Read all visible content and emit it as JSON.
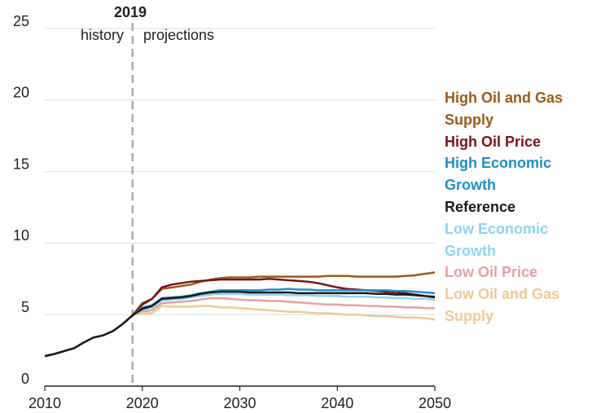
{
  "chart_data": {
    "type": "line",
    "annotations": {
      "year": "2019",
      "left": "history",
      "right": "projections"
    },
    "divider_x": 2019,
    "x": [
      2010,
      2011,
      2012,
      2013,
      2014,
      2015,
      2016,
      2017,
      2018,
      2019,
      2020,
      2021,
      2022,
      2023,
      2024,
      2025,
      2026,
      2027,
      2028,
      2029,
      2030,
      2031,
      2032,
      2033,
      2034,
      2035,
      2036,
      2037,
      2038,
      2039,
      2040,
      2041,
      2042,
      2043,
      2044,
      2045,
      2046,
      2047,
      2048,
      2049,
      2050
    ],
    "xlim": [
      2010,
      2050
    ],
    "xticks": [
      2010,
      2020,
      2030,
      2040,
      2050
    ],
    "ylim": [
      0,
      25
    ],
    "yticks": [
      0,
      5,
      10,
      15,
      20,
      25
    ],
    "grid": true,
    "legend": "right",
    "series": [
      {
        "name": "High Oil and Gas Supply",
        "color": "#9b5a1a",
        "values": [
          2.1,
          2.25,
          2.45,
          2.65,
          3.05,
          3.4,
          3.55,
          3.85,
          4.35,
          4.95,
          5.8,
          6.1,
          6.8,
          6.9,
          7.0,
          7.1,
          7.3,
          7.45,
          7.55,
          7.6,
          7.6,
          7.6,
          7.65,
          7.65,
          7.65,
          7.65,
          7.65,
          7.65,
          7.65,
          7.7,
          7.7,
          7.7,
          7.65,
          7.65,
          7.65,
          7.65,
          7.65,
          7.7,
          7.75,
          7.85,
          7.95
        ]
      },
      {
        "name": "High Oil Price",
        "color": "#7b1020",
        "values": [
          2.1,
          2.25,
          2.45,
          2.65,
          3.05,
          3.4,
          3.55,
          3.85,
          4.35,
          4.95,
          5.7,
          6.1,
          6.9,
          7.1,
          7.2,
          7.3,
          7.35,
          7.4,
          7.45,
          7.45,
          7.45,
          7.45,
          7.45,
          7.5,
          7.45,
          7.4,
          7.35,
          7.3,
          7.2,
          7.05,
          6.9,
          6.8,
          6.75,
          6.7,
          6.65,
          6.6,
          6.55,
          6.5,
          6.4,
          6.3,
          6.2
        ]
      },
      {
        "name": "High Economic Growth",
        "color": "#1f8ec8",
        "values": [
          2.1,
          2.25,
          2.45,
          2.65,
          3.05,
          3.4,
          3.55,
          3.85,
          4.35,
          4.95,
          5.5,
          5.65,
          6.15,
          6.2,
          6.25,
          6.35,
          6.5,
          6.6,
          6.7,
          6.7,
          6.7,
          6.7,
          6.7,
          6.75,
          6.75,
          6.8,
          6.75,
          6.75,
          6.7,
          6.7,
          6.7,
          6.7,
          6.7,
          6.7,
          6.7,
          6.7,
          6.65,
          6.65,
          6.6,
          6.55,
          6.5
        ]
      },
      {
        "name": "Reference",
        "color": "#1a1a1a",
        "values": [
          2.1,
          2.25,
          2.45,
          2.65,
          3.05,
          3.4,
          3.55,
          3.85,
          4.35,
          4.95,
          5.4,
          5.6,
          6.1,
          6.15,
          6.2,
          6.3,
          6.45,
          6.55,
          6.6,
          6.6,
          6.6,
          6.55,
          6.55,
          6.55,
          6.55,
          6.55,
          6.5,
          6.5,
          6.5,
          6.5,
          6.5,
          6.5,
          6.5,
          6.5,
          6.45,
          6.45,
          6.4,
          6.4,
          6.35,
          6.3,
          6.25
        ]
      },
      {
        "name": "Low Economic Growth",
        "color": "#8fd3f0",
        "values": [
          2.1,
          2.25,
          2.45,
          2.65,
          3.05,
          3.4,
          3.55,
          3.85,
          4.35,
          4.95,
          5.3,
          5.5,
          6.0,
          6.05,
          6.1,
          6.2,
          6.3,
          6.4,
          6.45,
          6.45,
          6.45,
          6.4,
          6.4,
          6.4,
          6.4,
          6.35,
          6.35,
          6.35,
          6.3,
          6.3,
          6.3,
          6.25,
          6.25,
          6.25,
          6.2,
          6.2,
          6.15,
          6.15,
          6.1,
          6.1,
          6.05
        ]
      },
      {
        "name": "Low Oil Price",
        "color": "#e5a0a8",
        "values": [
          2.1,
          2.25,
          2.45,
          2.65,
          3.05,
          3.4,
          3.55,
          3.85,
          4.35,
          4.95,
          5.2,
          5.3,
          5.8,
          5.85,
          5.9,
          5.95,
          6.05,
          6.15,
          6.15,
          6.1,
          6.05,
          6.0,
          6.0,
          5.95,
          5.95,
          5.9,
          5.85,
          5.8,
          5.75,
          5.7,
          5.7,
          5.65,
          5.65,
          5.6,
          5.6,
          5.55,
          5.55,
          5.5,
          5.5,
          5.45,
          5.45
        ]
      },
      {
        "name": "Low Oil and Gas Supply",
        "color": "#f0c898",
        "values": [
          2.1,
          2.25,
          2.45,
          2.65,
          3.05,
          3.4,
          3.55,
          3.85,
          4.35,
          4.95,
          5.1,
          5.1,
          5.6,
          5.55,
          5.55,
          5.55,
          5.6,
          5.6,
          5.5,
          5.5,
          5.45,
          5.4,
          5.35,
          5.3,
          5.25,
          5.2,
          5.2,
          5.15,
          5.1,
          5.1,
          5.05,
          5.0,
          5.0,
          4.95,
          4.9,
          4.9,
          4.85,
          4.8,
          4.8,
          4.75,
          4.65
        ]
      }
    ]
  }
}
